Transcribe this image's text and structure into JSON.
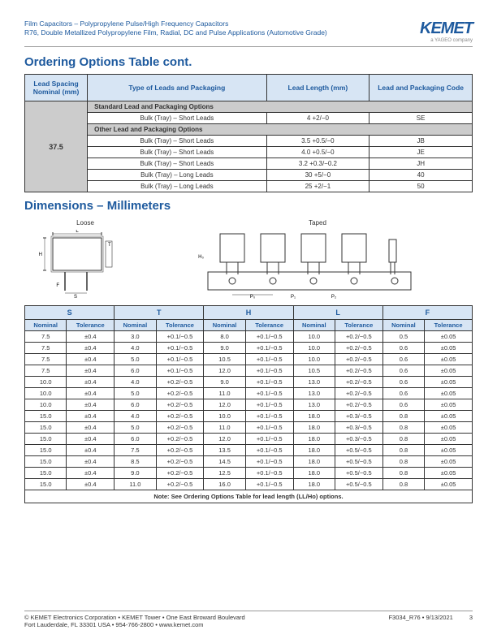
{
  "header": {
    "line1": "Film Capacitors – Polypropylene Pulse/High Frequency Capacitors",
    "line2": "R76, Double Metallized Polypropylene Film, Radial, DC and Pulse Applications (Automotive Grade)",
    "logo": "KEMET",
    "logo_sub": "a YAGEO company"
  },
  "title1": "Ordering Options Table cont.",
  "t1": {
    "h1": "Lead Spacing Nominal (mm)",
    "h2": "Type of Leads and Packaging",
    "h3": "Lead Length (mm)",
    "h4": "Lead and Packaging Code",
    "ls": "37.5",
    "s1": "Standard Lead and Packaging Options",
    "r1": {
      "a": "Bulk (Tray) – Short Leads",
      "b": "4 +2/−0",
      "c": "SE"
    },
    "s2": "Other Lead and Packaging Options",
    "r2": {
      "a": "Bulk (Tray) – Short Leads",
      "b": "3.5 +0.5/−0",
      "c": "JB"
    },
    "r3": {
      "a": "Bulk (Tray) – Short Leads",
      "b": "4.0 +0.5/−0",
      "c": "JE"
    },
    "r4": {
      "a": "Bulk (Tray) – Short Leads",
      "b": "3.2 +0.3/−0.2",
      "c": "JH"
    },
    "r5": {
      "a": "Bulk (Tray) – Long Leads",
      "b": "30 +5/−0",
      "c": "40"
    },
    "r6": {
      "a": "Bulk (Tray) – Long Leads",
      "b": "25 +2/−1",
      "c": "50"
    }
  },
  "title2": "Dimensions – Millimeters",
  "diag": {
    "loose": "Loose",
    "taped": "Taped"
  },
  "t2": {
    "cols": [
      "S",
      "T",
      "H",
      "L",
      "F"
    ],
    "sub": [
      "Nominal",
      "Tolerance"
    ],
    "rows": [
      [
        "7.5",
        "±0.4",
        "3.0",
        "+0.1/−0.5",
        "8.0",
        "+0.1/−0.5",
        "10.0",
        "+0.2/−0.5",
        "0.5",
        "±0.05"
      ],
      [
        "7.5",
        "±0.4",
        "4.0",
        "+0.1/−0.5",
        "9.0",
        "+0.1/−0.5",
        "10.0",
        "+0.2/−0.5",
        "0.6",
        "±0.05"
      ],
      [
        "7.5",
        "±0.4",
        "5.0",
        "+0.1/−0.5",
        "10.5",
        "+0.1/−0.5",
        "10.0",
        "+0.2/−0.5",
        "0.6",
        "±0.05"
      ],
      [
        "7.5",
        "±0.4",
        "6.0",
        "+0.1/−0.5",
        "12.0",
        "+0.1/−0.5",
        "10.5",
        "+0.2/−0.5",
        "0.6",
        "±0.05"
      ],
      [
        "10.0",
        "±0.4",
        "4.0",
        "+0.2/−0.5",
        "9.0",
        "+0.1/−0.5",
        "13.0",
        "+0.2/−0.5",
        "0.6",
        "±0.05"
      ],
      [
        "10.0",
        "±0.4",
        "5.0",
        "+0.2/−0.5",
        "11.0",
        "+0.1/−0.5",
        "13.0",
        "+0.2/−0.5",
        "0.6",
        "±0.05"
      ],
      [
        "10.0",
        "±0.4",
        "6.0",
        "+0.2/−0.5",
        "12.0",
        "+0.1/−0.5",
        "13.0",
        "+0.2/−0.5",
        "0.6",
        "±0.05"
      ],
      [
        "15.0",
        "±0.4",
        "4.0",
        "+0.2/−0.5",
        "10.0",
        "+0.1/−0.5",
        "18.0",
        "+0.3/−0.5",
        "0.8",
        "±0.05"
      ],
      [
        "15.0",
        "±0.4",
        "5.0",
        "+0.2/−0.5",
        "11.0",
        "+0.1/−0.5",
        "18.0",
        "+0.3/−0.5",
        "0.8",
        "±0.05"
      ],
      [
        "15.0",
        "±0.4",
        "6.0",
        "+0.2/−0.5",
        "12.0",
        "+0.1/−0.5",
        "18.0",
        "+0.3/−0.5",
        "0.8",
        "±0.05"
      ],
      [
        "15.0",
        "±0.4",
        "7.5",
        "+0.2/−0.5",
        "13.5",
        "+0.1/−0.5",
        "18.0",
        "+0.5/−0.5",
        "0.8",
        "±0.05"
      ],
      [
        "15.0",
        "±0.4",
        "8.5",
        "+0.2/−0.5",
        "14.5",
        "+0.1/−0.5",
        "18.0",
        "+0.5/−0.5",
        "0.8",
        "±0.05"
      ],
      [
        "15.0",
        "±0.4",
        "9.0",
        "+0.2/−0.5",
        "12.5",
        "+0.1/−0.5",
        "18.0",
        "+0.5/−0.5",
        "0.8",
        "±0.05"
      ],
      [
        "15.0",
        "±0.4",
        "11.0",
        "+0.2/−0.5",
        "16.0",
        "+0.1/−0.5",
        "18.0",
        "+0.5/−0.5",
        "0.8",
        "±0.05"
      ]
    ],
    "note": "Note: See Ordering Options Table for lead length (LL/Ho) options."
  },
  "footer": {
    "l1": "© KEMET Electronics Corporation • KEMET Tower • One East Broward Boulevard",
    "l2": "Fort Lauderdale, FL 33301 USA • 954-766-2800 • www.kemet.com",
    "r": "F3034_R76 • 9/13/2021",
    "pg": "3"
  }
}
